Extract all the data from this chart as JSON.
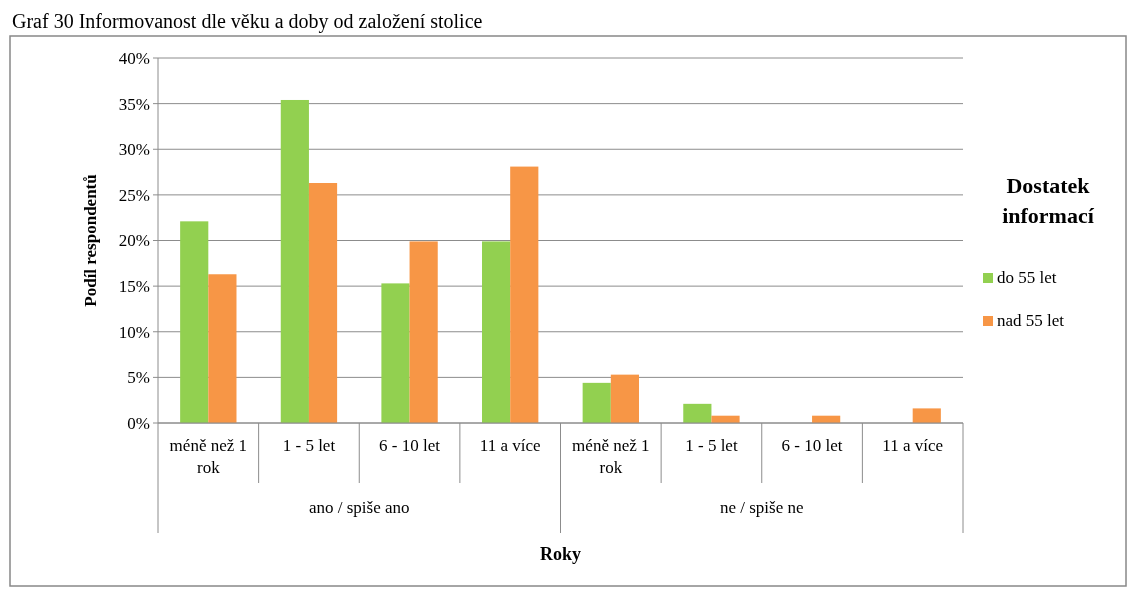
{
  "chart_data": {
    "type": "bar",
    "title": "Graf 30 Informovanost dle věku a doby od založení stolice",
    "xlabel": "Roky",
    "ylabel": "Podíl respondentů",
    "legend_title": "Dostatek informací",
    "categories": [
      "méně než 1 rok",
      "1 - 5 let",
      "6 - 10 let",
      "11 a více",
      "méně než 1 rok",
      "1 - 5 let",
      "6 - 10 let",
      "11 a více"
    ],
    "annotations": [
      "ano / spiše ano",
      "ne / spiše ne"
    ],
    "series": [
      {
        "name": "do 55 let",
        "color": "#92d050",
        "values": [
          22.1,
          35.4,
          15.3,
          19.9,
          4.4,
          2.1,
          0,
          0
        ]
      },
      {
        "name": "nad 55 let",
        "color": "#f79646",
        "values": [
          16.3,
          26.3,
          19.9,
          28.1,
          5.3,
          0.8,
          0.8,
          1.6
        ]
      }
    ],
    "ylim": [
      0,
      40
    ],
    "yticks": [
      {
        "value": 0,
        "label": "0%"
      },
      {
        "value": 5,
        "label": "5%"
      },
      {
        "value": 10,
        "label": "10%"
      },
      {
        "value": 15,
        "label": "15%"
      },
      {
        "value": 20,
        "label": "20%"
      },
      {
        "value": 25,
        "label": "25%"
      },
      {
        "value": 30,
        "label": "30%"
      },
      {
        "value": 35,
        "label": "35%"
      },
      {
        "value": 40,
        "label": "40%"
      }
    ],
    "grid": "y",
    "legend": "right"
  }
}
